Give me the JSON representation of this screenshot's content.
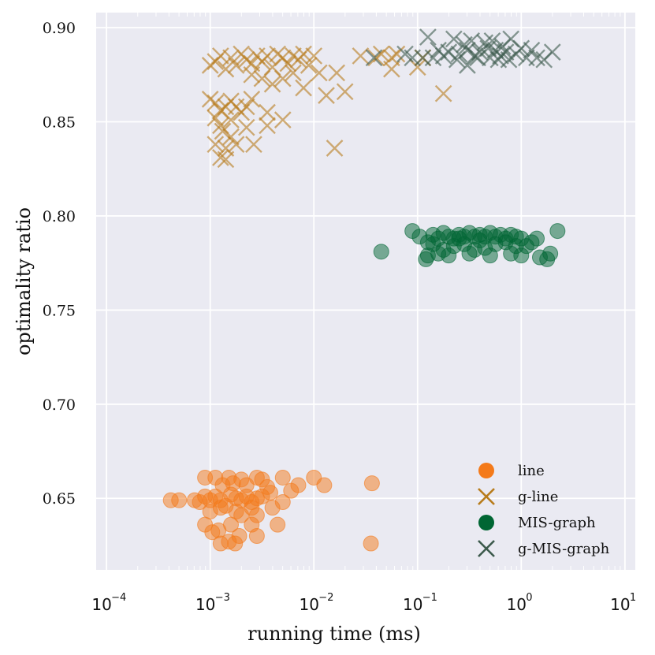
{
  "chart_data": {
    "type": "scatter",
    "title": "",
    "xlabel": "running time (ms)",
    "ylabel": "optimality ratio",
    "xscale": "log",
    "xlim_exp": [
      -4.1,
      1.1
    ],
    "ylim": [
      0.612,
      0.908
    ],
    "grid": true,
    "legend_position": "lower-right",
    "xticks": [
      {
        "base": "10",
        "exp": "−4",
        "value_exp": -4
      },
      {
        "base": "10",
        "exp": "−3",
        "value_exp": -3
      },
      {
        "base": "10",
        "exp": "−2",
        "value_exp": -2
      },
      {
        "base": "10",
        "exp": "−1",
        "value_exp": -1
      },
      {
        "base": "10",
        "exp": "0",
        "value_exp": 0
      },
      {
        "base": "10",
        "exp": "1",
        "value_exp": 1
      }
    ],
    "yticks": [
      {
        "label": "0.65",
        "value": 0.65
      },
      {
        "label": "0.70",
        "value": 0.7
      },
      {
        "label": "0.75",
        "value": 0.75
      },
      {
        "label": "0.80",
        "value": 0.8
      },
      {
        "label": "0.85",
        "value": 0.85
      },
      {
        "label": "0.90",
        "value": 0.9
      }
    ],
    "series": [
      {
        "name": "line",
        "marker": "circle",
        "color": "#f47a1a",
        "points": [
          [
            -3.3,
            0.649
          ],
          [
            -3.38,
            0.649
          ],
          [
            -3.15,
            0.649
          ],
          [
            -3.1,
            0.648
          ],
          [
            -3.05,
            0.651
          ],
          [
            -3.0,
            0.649
          ],
          [
            -2.95,
            0.651
          ],
          [
            -2.9,
            0.649
          ],
          [
            -2.85,
            0.646
          ],
          [
            -2.8,
            0.652
          ],
          [
            -2.75,
            0.65
          ],
          [
            -2.7,
            0.649
          ],
          [
            -2.65,
            0.651
          ],
          [
            -2.6,
            0.648
          ],
          [
            -2.55,
            0.65
          ],
          [
            -2.5,
            0.651
          ],
          [
            -2.45,
            0.656
          ],
          [
            -2.42,
            0.653
          ],
          [
            -3.05,
            0.661
          ],
          [
            -2.95,
            0.661
          ],
          [
            -2.82,
            0.661
          ],
          [
            -2.7,
            0.66
          ],
          [
            -2.55,
            0.661
          ],
          [
            -2.3,
            0.661
          ],
          [
            -2.15,
            0.657
          ],
          [
            -2.22,
            0.654
          ],
          [
            -2.0,
            0.661
          ],
          [
            -1.9,
            0.657
          ],
          [
            -2.88,
            0.657
          ],
          [
            -2.78,
            0.658
          ],
          [
            -2.65,
            0.657
          ],
          [
            -3.0,
            0.643
          ],
          [
            -2.9,
            0.645
          ],
          [
            -2.75,
            0.643
          ],
          [
            -2.6,
            0.645
          ],
          [
            -2.7,
            0.641
          ],
          [
            -2.55,
            0.641
          ],
          [
            -2.4,
            0.645
          ],
          [
            -2.3,
            0.648
          ],
          [
            -3.05,
            0.636
          ],
          [
            -2.8,
            0.636
          ],
          [
            -2.6,
            0.636
          ],
          [
            -2.35,
            0.636
          ],
          [
            -2.98,
            0.632
          ],
          [
            -2.92,
            0.633
          ],
          [
            -2.72,
            0.63
          ],
          [
            -2.55,
            0.63
          ],
          [
            -2.9,
            0.626
          ],
          [
            -2.82,
            0.627
          ],
          [
            -2.76,
            0.626
          ],
          [
            -1.45,
            0.626
          ],
          [
            -1.44,
            0.658
          ],
          [
            -2.5,
            0.66
          ]
        ]
      },
      {
        "name": "g-line",
        "marker": "x",
        "color": "#b87c1c",
        "points": [
          [
            -3.0,
            0.88
          ],
          [
            -2.95,
            0.882
          ],
          [
            -2.9,
            0.885
          ],
          [
            -2.85,
            0.878
          ],
          [
            -2.8,
            0.884
          ],
          [
            -2.75,
            0.88
          ],
          [
            -2.7,
            0.886
          ],
          [
            -2.65,
            0.883
          ],
          [
            -2.6,
            0.881
          ],
          [
            -2.55,
            0.885
          ],
          [
            -2.5,
            0.882
          ],
          [
            -2.45,
            0.885
          ],
          [
            -2.4,
            0.879
          ],
          [
            -2.35,
            0.886
          ],
          [
            -2.3,
            0.884
          ],
          [
            -2.25,
            0.881
          ],
          [
            -2.2,
            0.885
          ],
          [
            -2.15,
            0.883
          ],
          [
            -2.1,
            0.886
          ],
          [
            -2.05,
            0.88
          ],
          [
            -2.0,
            0.885
          ],
          [
            -2.6,
            0.875
          ],
          [
            -2.5,
            0.873
          ],
          [
            -2.4,
            0.87
          ],
          [
            -2.3,
            0.873
          ],
          [
            -2.2,
            0.876
          ],
          [
            -2.1,
            0.868
          ],
          [
            -1.95,
            0.876
          ],
          [
            -1.78,
            0.876
          ],
          [
            -1.88,
            0.864
          ],
          [
            -1.7,
            0.866
          ],
          [
            -1.55,
            0.885
          ],
          [
            -1.4,
            0.884
          ],
          [
            -1.35,
            0.886
          ],
          [
            -1.25,
            0.884
          ],
          [
            -1.2,
            0.886
          ],
          [
            -1.25,
            0.878
          ],
          [
            -1.0,
            0.879
          ],
          [
            -0.95,
            0.884
          ],
          [
            -0.75,
            0.865
          ],
          [
            -3.0,
            0.862
          ],
          [
            -2.95,
            0.86
          ],
          [
            -2.9,
            0.856
          ],
          [
            -2.85,
            0.858
          ],
          [
            -2.8,
            0.861
          ],
          [
            -2.75,
            0.858
          ],
          [
            -2.7,
            0.855
          ],
          [
            -2.65,
            0.858
          ],
          [
            -2.6,
            0.862
          ],
          [
            -2.45,
            0.855
          ],
          [
            -2.3,
            0.851
          ],
          [
            -2.95,
            0.852
          ],
          [
            -2.9,
            0.848
          ],
          [
            -2.8,
            0.851
          ],
          [
            -2.88,
            0.845
          ],
          [
            -2.8,
            0.842
          ],
          [
            -2.65,
            0.847
          ],
          [
            -2.95,
            0.838
          ],
          [
            -2.85,
            0.836
          ],
          [
            -2.75,
            0.838
          ],
          [
            -2.58,
            0.838
          ],
          [
            -2.9,
            0.831
          ],
          [
            -2.85,
            0.83
          ],
          [
            -1.8,
            0.836
          ],
          [
            -2.45,
            0.848
          ]
        ]
      },
      {
        "name": "MIS-graph",
        "marker": "circle",
        "color": "#006633",
        "points": [
          [
            -1.35,
            0.781
          ],
          [
            -1.05,
            0.792
          ],
          [
            -0.98,
            0.789
          ],
          [
            -0.9,
            0.786
          ],
          [
            -0.85,
            0.79
          ],
          [
            -0.8,
            0.788
          ],
          [
            -0.75,
            0.791
          ],
          [
            -0.7,
            0.789
          ],
          [
            -0.65,
            0.788
          ],
          [
            -0.6,
            0.79
          ],
          [
            -0.55,
            0.789
          ],
          [
            -0.5,
            0.791
          ],
          [
            -0.45,
            0.789
          ],
          [
            -0.4,
            0.79
          ],
          [
            -0.35,
            0.789
          ],
          [
            -0.3,
            0.791
          ],
          [
            -0.25,
            0.789
          ],
          [
            -0.2,
            0.79
          ],
          [
            -0.15,
            0.788
          ],
          [
            -0.1,
            0.79
          ],
          [
            -0.05,
            0.789
          ],
          [
            0.0,
            0.788
          ],
          [
            0.1,
            0.786
          ],
          [
            -0.85,
            0.785
          ],
          [
            -0.75,
            0.782
          ],
          [
            -0.65,
            0.784
          ],
          [
            -0.55,
            0.785
          ],
          [
            -0.45,
            0.782
          ],
          [
            -0.35,
            0.783
          ],
          [
            -0.25,
            0.785
          ],
          [
            -0.15,
            0.786
          ],
          [
            -0.05,
            0.784
          ],
          [
            0.05,
            0.784
          ],
          [
            -0.9,
            0.779
          ],
          [
            -0.8,
            0.78
          ],
          [
            -0.7,
            0.779
          ],
          [
            -0.5,
            0.78
          ],
          [
            -0.3,
            0.779
          ],
          [
            -0.1,
            0.78
          ],
          [
            -0.92,
            0.777
          ],
          [
            0.0,
            0.779
          ],
          [
            0.18,
            0.778
          ],
          [
            0.25,
            0.777
          ],
          [
            0.28,
            0.78
          ],
          [
            0.15,
            0.788
          ],
          [
            0.35,
            0.792
          ],
          [
            -0.6,
            0.788
          ],
          [
            -0.4,
            0.787
          ]
        ]
      },
      {
        "name": "g-MIS-graph",
        "marker": "x",
        "color": "#3c5a4c",
        "points": [
          [
            -1.42,
            0.884
          ],
          [
            -1.12,
            0.886
          ],
          [
            -1.05,
            0.884
          ],
          [
            -0.95,
            0.884
          ],
          [
            -0.9,
            0.895
          ],
          [
            -0.85,
            0.884
          ],
          [
            -0.8,
            0.888
          ],
          [
            -0.75,
            0.885
          ],
          [
            -0.7,
            0.887
          ],
          [
            -0.65,
            0.894
          ],
          [
            -0.6,
            0.886
          ],
          [
            -0.55,
            0.891
          ],
          [
            -0.52,
            0.88
          ],
          [
            -0.48,
            0.893
          ],
          [
            -0.45,
            0.885
          ],
          [
            -0.4,
            0.887
          ],
          [
            -0.35,
            0.892
          ],
          [
            -0.3,
            0.884
          ],
          [
            -0.28,
            0.893
          ],
          [
            -0.25,
            0.888
          ],
          [
            -0.2,
            0.885
          ],
          [
            -0.18,
            0.89
          ],
          [
            -0.15,
            0.887
          ],
          [
            -0.1,
            0.894
          ],
          [
            -0.05,
            0.886
          ],
          [
            0.0,
            0.889
          ],
          [
            0.05,
            0.884
          ],
          [
            0.1,
            0.888
          ],
          [
            0.15,
            0.884
          ],
          [
            0.22,
            0.883
          ],
          [
            0.3,
            0.887
          ],
          [
            -0.62,
            0.883
          ],
          [
            -0.42,
            0.884
          ],
          [
            -0.22,
            0.883
          ],
          [
            -0.32,
            0.889
          ],
          [
            -0.12,
            0.883
          ],
          [
            -0.52,
            0.888
          ]
        ]
      }
    ]
  }
}
